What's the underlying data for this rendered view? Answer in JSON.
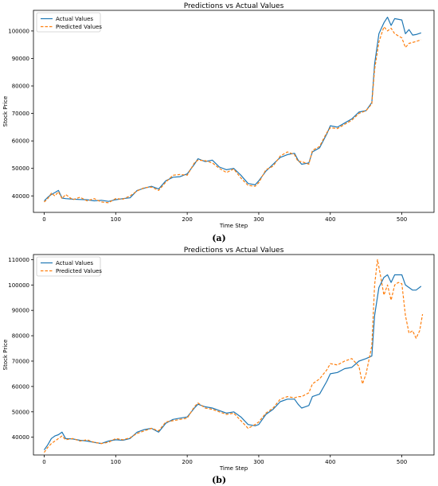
{
  "chart_data": [
    {
      "type": "line",
      "title": "Predictions vs Actual Values",
      "xlabel": "Time Step",
      "ylabel": "Stock Price",
      "xlim": [
        -15,
        545
      ],
      "ylim": [
        34000,
        107500
      ],
      "xticks": [
        0,
        100,
        200,
        300,
        400,
        500
      ],
      "yticks": [
        40000,
        50000,
        60000,
        70000,
        80000,
        90000,
        100000
      ],
      "grid": false,
      "legend": "top-left",
      "caption": "(a)",
      "series": [
        {
          "name": "Actual Values",
          "color": "#1f77b4",
          "style": "solid",
          "points": [
            [
              0,
              38200
            ],
            [
              5,
              39500
            ],
            [
              10,
              40500
            ],
            [
              15,
              41200
            ],
            [
              20,
              42000
            ],
            [
              25,
              39200
            ],
            [
              30,
              39000
            ],
            [
              40,
              38800
            ],
            [
              50,
              38700
            ],
            [
              60,
              38600
            ],
            [
              70,
              38200
            ],
            [
              80,
              38400
            ],
            [
              90,
              38000
            ],
            [
              100,
              38600
            ],
            [
              110,
              39000
            ],
            [
              120,
              39300
            ],
            [
              130,
              42000
            ],
            [
              140,
              42800
            ],
            [
              150,
              43500
            ],
            [
              160,
              42500
            ],
            [
              170,
              45500
            ],
            [
              180,
              46800
            ],
            [
              190,
              47000
            ],
            [
              200,
              48000
            ],
            [
              210,
              51500
            ],
            [
              215,
              53500
            ],
            [
              225,
              52500
            ],
            [
              235,
              53000
            ],
            [
              245,
              50500
            ],
            [
              255,
              49500
            ],
            [
              265,
              50000
            ],
            [
              275,
              47500
            ],
            [
              285,
              44500
            ],
            [
              295,
              44000
            ],
            [
              300,
              45500
            ],
            [
              310,
              49000
            ],
            [
              320,
              51500
            ],
            [
              330,
              54000
            ],
            [
              340,
              55000
            ],
            [
              350,
              55500
            ],
            [
              355,
              53000
            ],
            [
              360,
              51500
            ],
            [
              370,
              52000
            ],
            [
              375,
              56000
            ],
            [
              385,
              57500
            ],
            [
              395,
              62500
            ],
            [
              400,
              65500
            ],
            [
              410,
              65000
            ],
            [
              420,
              66500
            ],
            [
              430,
              68000
            ],
            [
              440,
              70500
            ],
            [
              450,
              71000
            ],
            [
              458,
              74000
            ],
            [
              462,
              88000
            ],
            [
              468,
              99000
            ],
            [
              475,
              103000
            ],
            [
              480,
              105000
            ],
            [
              485,
              102000
            ],
            [
              490,
              104500
            ],
            [
              500,
              104000
            ],
            [
              505,
              99000
            ],
            [
              510,
              100500
            ],
            [
              515,
              98500
            ],
            [
              520,
              98700
            ],
            [
              527,
              99300
            ]
          ]
        },
        {
          "name": "Predicted Values",
          "color": "#ff7f0e",
          "style": "dashed",
          "points": [
            [
              0,
              37800
            ],
            [
              5,
              39000
            ],
            [
              10,
              41000
            ],
            [
              15,
              40000
            ],
            [
              20,
              41500
            ],
            [
              25,
              39000
            ],
            [
              30,
              40500
            ],
            [
              40,
              38600
            ],
            [
              50,
              39500
            ],
            [
              60,
              38200
            ],
            [
              70,
              39000
            ],
            [
              80,
              37800
            ],
            [
              90,
              37500
            ],
            [
              100,
              39000
            ],
            [
              110,
              38800
            ],
            [
              120,
              40000
            ],
            [
              130,
              41800
            ],
            [
              140,
              43000
            ],
            [
              150,
              43200
            ],
            [
              160,
              42000
            ],
            [
              170,
              45000
            ],
            [
              180,
              47500
            ],
            [
              190,
              47800
            ],
            [
              200,
              47500
            ],
            [
              210,
              52000
            ],
            [
              215,
              53000
            ],
            [
              225,
              52800
            ],
            [
              235,
              52000
            ],
            [
              245,
              50000
            ],
            [
              255,
              48500
            ],
            [
              265,
              49800
            ],
            [
              275,
              46500
            ],
            [
              285,
              43800
            ],
            [
              295,
              43500
            ],
            [
              300,
              44800
            ],
            [
              310,
              49500
            ],
            [
              320,
              50800
            ],
            [
              330,
              54500
            ],
            [
              340,
              56000
            ],
            [
              350,
              55000
            ],
            [
              355,
              52500
            ],
            [
              360,
              52500
            ],
            [
              370,
              51500
            ],
            [
              375,
              56500
            ],
            [
              385,
              58000
            ],
            [
              395,
              63000
            ],
            [
              400,
              64800
            ],
            [
              410,
              64500
            ],
            [
              420,
              66000
            ],
            [
              430,
              67500
            ],
            [
              440,
              70000
            ],
            [
              450,
              71000
            ],
            [
              458,
              73500
            ],
            [
              462,
              86000
            ],
            [
              468,
              96000
            ],
            [
              475,
              101500
            ],
            [
              480,
              100000
            ],
            [
              485,
              101000
            ],
            [
              490,
              99000
            ],
            [
              500,
              97500
            ],
            [
              505,
              94000
            ],
            [
              510,
              95500
            ],
            [
              515,
              95800
            ],
            [
              520,
              96200
            ],
            [
              527,
              96800
            ]
          ]
        }
      ]
    },
    {
      "type": "line",
      "title": "Predictions vs Actual Values",
      "xlabel": "Time Step",
      "ylabel": "Stock Price",
      "xlim": [
        -15,
        545
      ],
      "ylim": [
        33000,
        112000
      ],
      "xticks": [
        0,
        100,
        200,
        300,
        400,
        500
      ],
      "yticks": [
        40000,
        50000,
        60000,
        70000,
        80000,
        90000,
        100000,
        110000
      ],
      "grid": false,
      "legend": "top-left",
      "caption": "(b)",
      "series": [
        {
          "name": "Actual Values",
          "color": "#1f77b4",
          "style": "solid",
          "points": [
            [
              0,
              35000
            ],
            [
              5,
              37000
            ],
            [
              10,
              39500
            ],
            [
              15,
              40500
            ],
            [
              20,
              41000
            ],
            [
              25,
              42000
            ],
            [
              30,
              39500
            ],
            [
              40,
              39300
            ],
            [
              50,
              38800
            ],
            [
              60,
              38500
            ],
            [
              70,
              38000
            ],
            [
              80,
              37500
            ],
            [
              90,
              38500
            ],
            [
              100,
              39000
            ],
            [
              110,
              38800
            ],
            [
              120,
              39500
            ],
            [
              130,
              42000
            ],
            [
              140,
              43000
            ],
            [
              150,
              43500
            ],
            [
              160,
              42000
            ],
            [
              170,
              45500
            ],
            [
              180,
              47000
            ],
            [
              190,
              47500
            ],
            [
              200,
              48000
            ],
            [
              210,
              51500
            ],
            [
              215,
              53000
            ],
            [
              225,
              52000
            ],
            [
              235,
              51500
            ],
            [
              245,
              50500
            ],
            [
              255,
              49500
            ],
            [
              265,
              50000
            ],
            [
              275,
              48000
            ],
            [
              285,
              45000
            ],
            [
              295,
              44500
            ],
            [
              300,
              45000
            ],
            [
              310,
              49000
            ],
            [
              320,
              51000
            ],
            [
              330,
              54000
            ],
            [
              340,
              55000
            ],
            [
              350,
              55000
            ],
            [
              355,
              53000
            ],
            [
              360,
              51500
            ],
            [
              370,
              52500
            ],
            [
              375,
              56000
            ],
            [
              385,
              57000
            ],
            [
              395,
              62000
            ],
            [
              400,
              65000
            ],
            [
              410,
              65500
            ],
            [
              420,
              67000
            ],
            [
              430,
              67500
            ],
            [
              440,
              70000
            ],
            [
              450,
              71000
            ],
            [
              458,
              72000
            ],
            [
              462,
              88000
            ],
            [
              468,
              99000
            ],
            [
              475,
              103000
            ],
            [
              480,
              104000
            ],
            [
              485,
              101000
            ],
            [
              490,
              104000
            ],
            [
              500,
              104000
            ],
            [
              505,
              100000
            ],
            [
              510,
              99000
            ],
            [
              515,
              98000
            ],
            [
              520,
              98000
            ],
            [
              527,
              99500
            ]
          ]
        },
        {
          "name": "Predicted Values",
          "color": "#ff7f0e",
          "style": "dashed",
          "points": [
            [
              0,
              34000
            ],
            [
              5,
              36000
            ],
            [
              10,
              37500
            ],
            [
              15,
              38500
            ],
            [
              20,
              39500
            ],
            [
              25,
              40500
            ],
            [
              30,
              39000
            ],
            [
              40,
              39500
            ],
            [
              50,
              38500
            ],
            [
              60,
              39000
            ],
            [
              70,
              38000
            ],
            [
              80,
              37500
            ],
            [
              90,
              38000
            ],
            [
              100,
              39500
            ],
            [
              110,
              39000
            ],
            [
              120,
              39800
            ],
            [
              130,
              41500
            ],
            [
              140,
              42500
            ],
            [
              150,
              43500
            ],
            [
              160,
              42500
            ],
            [
              170,
              46000
            ],
            [
              180,
              46500
            ],
            [
              190,
              47000
            ],
            [
              200,
              47500
            ],
            [
              210,
              52000
            ],
            [
              215,
              53500
            ],
            [
              225,
              51500
            ],
            [
              235,
              51000
            ],
            [
              245,
              50000
            ],
            [
              255,
              49000
            ],
            [
              265,
              49500
            ],
            [
              275,
              46500
            ],
            [
              285,
              43500
            ],
            [
              295,
              45000
            ],
            [
              300,
              46000
            ],
            [
              310,
              49500
            ],
            [
              320,
              51500
            ],
            [
              330,
              55000
            ],
            [
              340,
              56000
            ],
            [
              350,
              55500
            ],
            [
              355,
              56000
            ],
            [
              360,
              56000
            ],
            [
              370,
              57500
            ],
            [
              375,
              61000
            ],
            [
              385,
              63000
            ],
            [
              395,
              66500
            ],
            [
              400,
              69000
            ],
            [
              410,
              68500
            ],
            [
              420,
              70000
            ],
            [
              430,
              71000
            ],
            [
              440,
              68000
            ],
            [
              445,
              61000
            ],
            [
              450,
              65000
            ],
            [
              458,
              76000
            ],
            [
              462,
              100000
            ],
            [
              466,
              110000
            ],
            [
              470,
              104000
            ],
            [
              475,
              96000
            ],
            [
              480,
              100000
            ],
            [
              485,
              94000
            ],
            [
              490,
              100000
            ],
            [
              495,
              101000
            ],
            [
              500,
              100500
            ],
            [
              505,
              88000
            ],
            [
              510,
              81000
            ],
            [
              515,
              82000
            ],
            [
              520,
              79000
            ],
            [
              525,
              82000
            ],
            [
              529,
              88500
            ]
          ]
        }
      ]
    }
  ]
}
